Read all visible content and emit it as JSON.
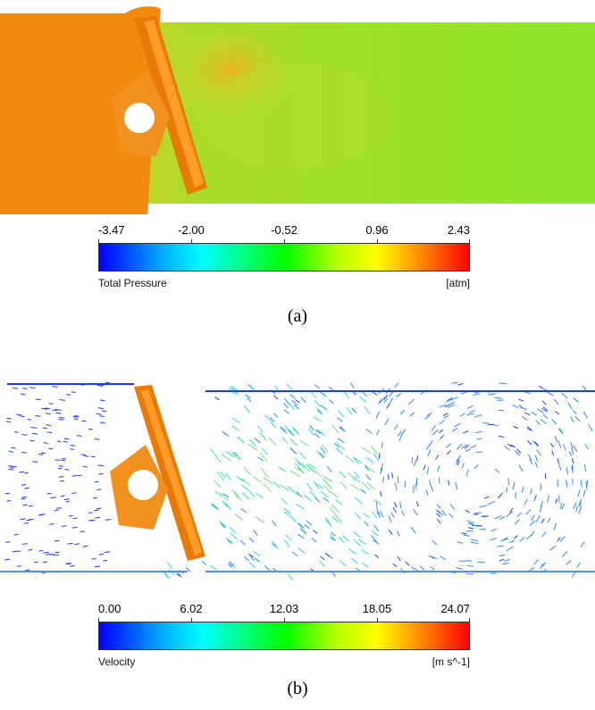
{
  "panels": [
    {
      "caption": "(a)",
      "legend": {
        "title": "Total Pressure",
        "unit": "[atm]",
        "ticks": [
          "-3.47",
          "-2.00",
          "-0.52",
          "0.96",
          "2.43"
        ]
      }
    },
    {
      "caption": "(b)",
      "legend": {
        "title": "Velocity",
        "unit": "[m s^-1]",
        "ticks": [
          "0.00",
          "6.02",
          "12.03",
          "18.05",
          "24.07"
        ]
      }
    }
  ],
  "colors": {
    "valve": "#f28a0f",
    "pressure_field": "#8ae02a",
    "vector_low": "#1a3cff",
    "vector_mid": "#2fd8e0",
    "vector_high": "#9de04a"
  }
}
